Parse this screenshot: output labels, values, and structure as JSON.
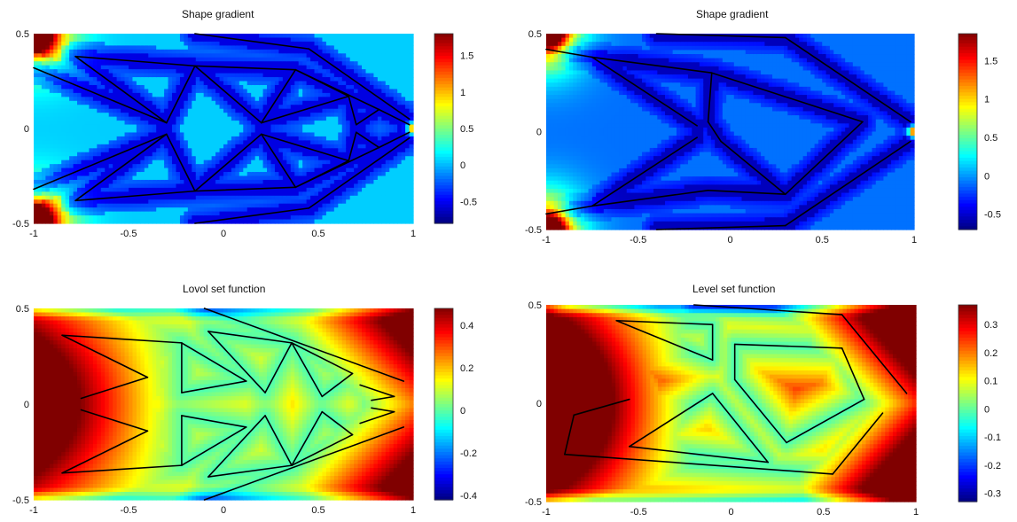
{
  "chart_data": [
    {
      "type": "heatmap",
      "title": "Shape gradient",
      "xlim": [
        -1,
        1
      ],
      "ylim": [
        -0.5,
        0.5
      ],
      "xticks": [
        "-1",
        "-0.5",
        "0",
        "0.5",
        "1"
      ],
      "yticks": [
        "-0.5",
        "0",
        "0.5"
      ],
      "colorbar": {
        "ticks": [
          "1.5",
          "1",
          "0.5",
          "0",
          "-0.5"
        ],
        "range": [
          -0.8,
          1.8
        ]
      },
      "background_value": 0.05,
      "structure": "fine lattice with two interior joints"
    },
    {
      "type": "heatmap",
      "title": "Shape gradient",
      "xlim": [
        -1,
        1
      ],
      "ylim": [
        -0.5,
        0.5
      ],
      "xticks": [
        "-1",
        "-0.5",
        "0",
        "0.5",
        "1"
      ],
      "yticks": [
        "-0.5",
        "0",
        "0.5"
      ],
      "colorbar": {
        "ticks": [
          "1.5",
          "1",
          "0.5",
          "0",
          "-0.5"
        ],
        "range": [
          -0.7,
          1.85
        ]
      },
      "background_value": -0.1,
      "structure": "coarse chevron with one interior joint"
    },
    {
      "type": "heatmap",
      "title": "Lovol set function",
      "xlim": [
        -1,
        1
      ],
      "ylim": [
        -0.5,
        0.5
      ],
      "xticks": [
        "-1",
        "-0.5",
        "0",
        "0.5",
        "1"
      ],
      "yticks": [
        "-0.5",
        "0",
        "0.5"
      ],
      "colorbar": {
        "ticks": [
          "0.4",
          "0.2",
          "0",
          "-0.2",
          "-0.4"
        ],
        "range": [
          -0.42,
          0.48
        ]
      }
    },
    {
      "type": "heatmap",
      "title": "Level set function",
      "xlim": [
        -1,
        1
      ],
      "ylim": [
        -0.5,
        0.5
      ],
      "xticks": [
        "-1",
        "-0.5",
        "0",
        "0.5",
        "1"
      ],
      "yticks": [
        "-0.5",
        "0",
        "0.5"
      ],
      "colorbar": {
        "ticks": [
          "0.3",
          "0.2",
          "0.1",
          "0",
          "-0.1",
          "-0.2",
          "-0.3"
        ],
        "range": [
          -0.33,
          0.37
        ]
      }
    }
  ]
}
